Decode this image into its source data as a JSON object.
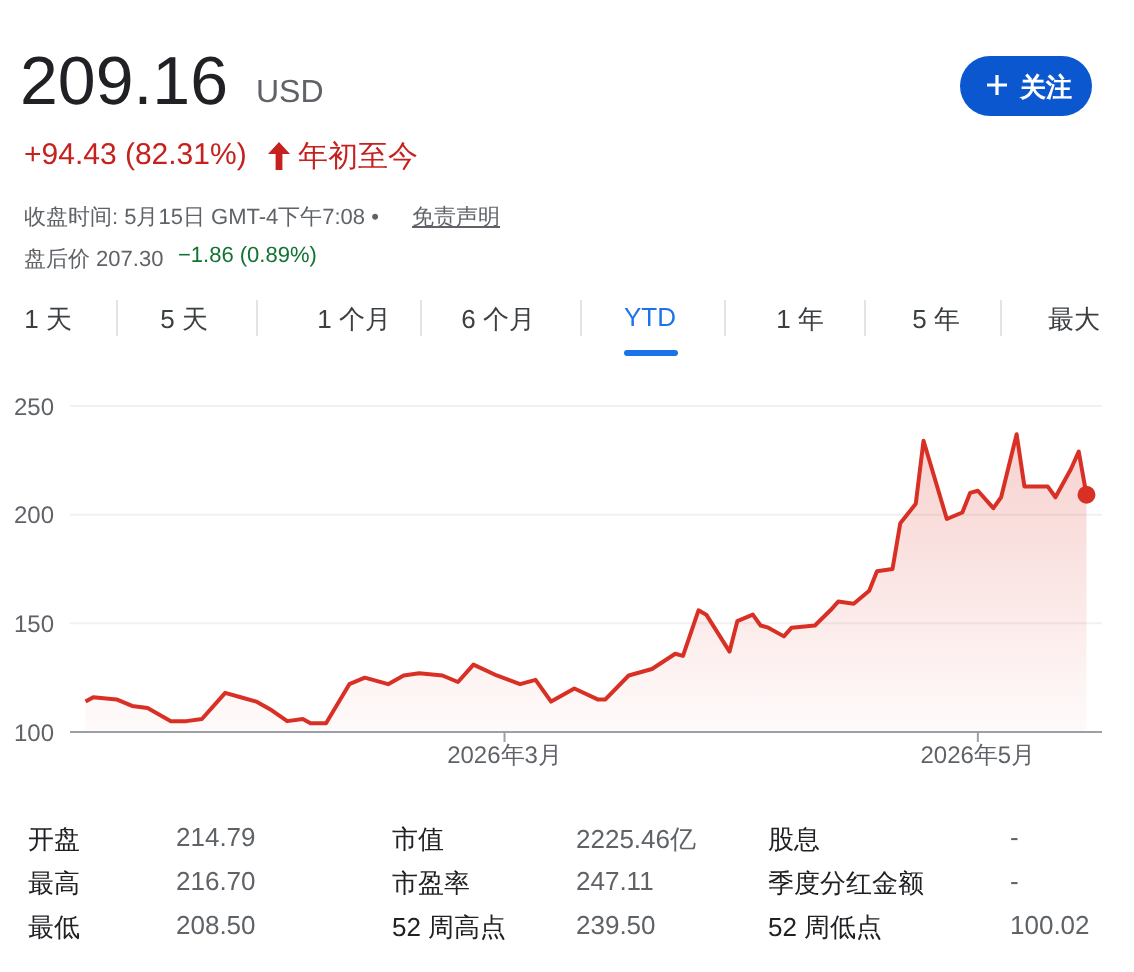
{
  "chart_data": {
    "type": "area",
    "title": "209.16",
    "subtitle": "USD",
    "annotations": [
      "+94.43 (82.31%)",
      "年初至今",
      "收盘时间: 5月15日 GMT-4下午7:08 •",
      "免责声明",
      "盘后价 207.30",
      "−1.86 (0.89%)",
      "关注",
      "1 天",
      "5 天",
      "1 个月",
      "6 个月",
      "YTD",
      "1 年",
      "5 年",
      "最大",
      "开盘",
      "214.79",
      "市值",
      "2225.46亿",
      "股息",
      "-",
      "最高",
      "216.70",
      "市盈率",
      "247.11",
      "季度分红金额",
      "-",
      "最低",
      "208.50",
      "52 周高点",
      "239.50",
      "52 周低点",
      "100.02"
    ],
    "x": [
      "2026-01-06",
      "2026-01-07",
      "2026-01-10",
      "2026-01-12",
      "2026-01-14",
      "2026-01-17",
      "2026-01-19",
      "2026-01-21",
      "2026-01-24",
      "2026-01-26",
      "2026-01-28",
      "2026-01-30",
      "2026-02-01",
      "2026-02-03",
      "2026-02-04",
      "2026-02-06",
      "2026-02-07",
      "2026-02-09",
      "2026-02-11",
      "2026-02-14",
      "2026-02-16",
      "2026-02-18",
      "2026-02-21",
      "2026-02-23",
      "2026-02-25",
      "2026-02-28",
      "2026-03-03",
      "2026-03-05",
      "2026-03-07",
      "2026-03-10",
      "2026-03-13",
      "2026-03-14",
      "2026-03-17",
      "2026-03-20",
      "2026-03-23",
      "2026-03-24",
      "2026-03-26",
      "2026-03-27",
      "2026-03-30",
      "2026-03-31",
      "2026-04-02",
      "2026-04-03",
      "2026-04-04",
      "2026-04-06",
      "2026-04-07",
      "2026-04-10",
      "2026-04-12",
      "2026-04-13",
      "2026-04-15",
      "2026-04-17",
      "2026-04-18",
      "2026-04-20",
      "2026-04-21",
      "2026-04-23",
      "2026-04-24",
      "2026-04-27",
      "2026-04-29",
      "2026-04-30",
      "2026-05-01",
      "2026-05-03",
      "2026-05-04",
      "2026-05-06",
      "2026-05-07",
      "2026-05-10",
      "2026-05-11",
      "2026-05-13",
      "2026-05-14",
      "2026-05-15"
    ],
    "series": [
      {
        "color": "#d93025",
        "values": [
          114,
          116,
          115,
          112,
          111,
          105,
          105,
          106,
          118,
          116,
          114,
          110,
          105,
          106,
          104,
          104,
          110,
          122,
          125,
          122,
          126,
          127,
          126,
          123,
          131,
          126,
          122,
          124,
          114,
          120,
          115,
          115,
          126,
          129,
          136,
          135,
          156,
          154,
          137,
          151,
          154,
          149,
          148,
          144,
          148,
          149,
          156,
          160,
          159,
          165,
          174,
          175,
          196,
          205,
          234,
          198,
          201,
          210,
          211,
          203,
          208,
          237,
          213,
          213,
          208,
          221,
          229,
          209.16
        ]
      }
    ],
    "xlim": [
      "2026-01-04",
      "2026-05-17"
    ],
    "xticks": [
      {
        "value": "2026-03-01",
        "label": "2026年3月"
      },
      {
        "value": "2026-05-01",
        "label": "2026年5月"
      }
    ],
    "ylim": [
      100,
      250
    ],
    "yticks": [
      100,
      150,
      200,
      250
    ],
    "grid": "y"
  }
}
